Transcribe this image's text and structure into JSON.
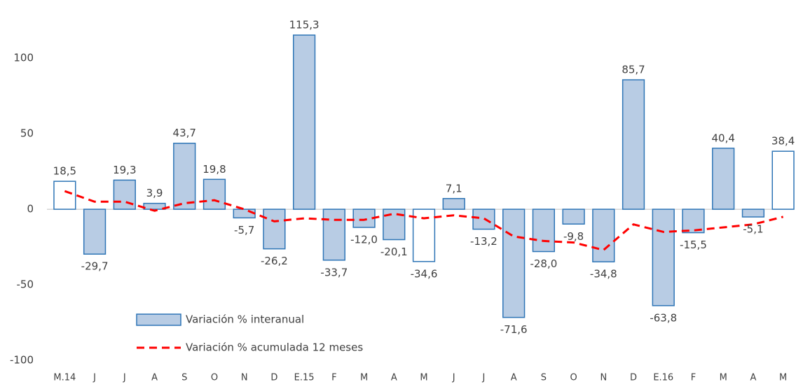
{
  "chart_data": {
    "type": "bar",
    "categories": [
      "M.14",
      "J",
      "J",
      "A",
      "S",
      "O",
      "N",
      "D",
      "E.15",
      "F",
      "M",
      "A",
      "M",
      "J",
      "J",
      "A",
      "S",
      "O",
      "N",
      "D",
      "E.16",
      "F",
      "M",
      "A",
      "M"
    ],
    "series": [
      {
        "name": "Variación % interanual",
        "type": "bar",
        "color": "#b8cce4",
        "edge_color": "#2e75b6",
        "values": [
          18.5,
          -29.7,
          19.3,
          3.9,
          43.7,
          19.8,
          -5.7,
          -26.2,
          115.3,
          -33.7,
          -12.0,
          -20.1,
          -34.6,
          7.1,
          -13.2,
          -71.6,
          -28.0,
          -9.8,
          -34.8,
          85.7,
          -63.8,
          -15.5,
          40.4,
          -5.1,
          38.4
        ],
        "value_labels": [
          "18,5",
          "-29,7",
          "19,3",
          "3,9",
          "43,7",
          "19,8",
          "-5,7",
          "-26,2",
          "115,3",
          "-33,7",
          "-12,0",
          "-20,1",
          "-34,6",
          "7,1",
          "-13,2",
          "-71,6",
          "-28,0",
          "-9,8",
          "-34,8",
          "85,7",
          "-63,8",
          "-15,5",
          "40,4",
          "-5,1",
          "38,4"
        ],
        "fills": [
          "#ffffff",
          "#b8cce4",
          "#b8cce4",
          "#b8cce4",
          "#b8cce4",
          "#b8cce4",
          "#b8cce4",
          "#b8cce4",
          "#b8cce4",
          "#b8cce4",
          "#b8cce4",
          "#b8cce4",
          "#ffffff",
          "#b8cce4",
          "#b8cce4",
          "#b8cce4",
          "#b8cce4",
          "#b8cce4",
          "#b8cce4",
          "#b8cce4",
          "#b8cce4",
          "#b8cce4",
          "#b8cce4",
          "#b8cce4",
          "#ffffff"
        ]
      },
      {
        "name": "Variación % acumulada 12 meses",
        "type": "line",
        "color": "#ff0000",
        "values": [
          12,
          5,
          5,
          -1,
          4,
          6,
          0,
          -8,
          -6,
          -7,
          -7,
          -3,
          -6,
          -4,
          -6,
          -18,
          -21,
          -22,
          -27,
          -10,
          -15,
          -14,
          -12,
          -10,
          -5
        ]
      }
    ],
    "ylim": [
      -100,
      120
    ],
    "yticks": [
      -100,
      -50,
      0,
      50,
      100
    ]
  }
}
